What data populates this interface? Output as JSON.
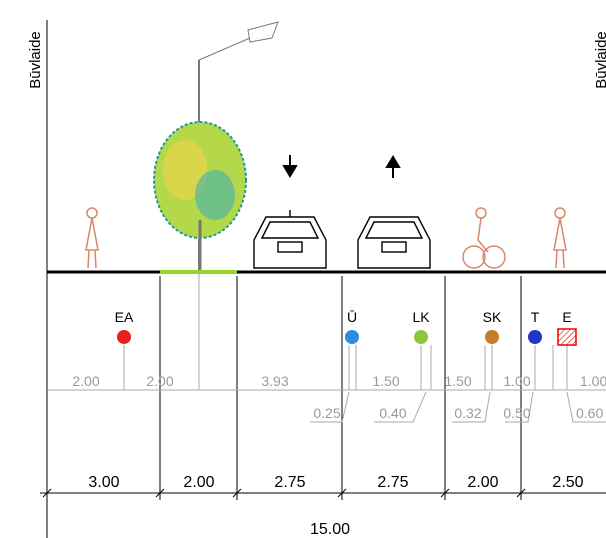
{
  "building_line": {
    "left": "Būvlaide",
    "right": "Būvlaide"
  },
  "utilities": [
    "EA",
    "Ū",
    "LK",
    "SK",
    "T",
    "E"
  ],
  "offsets_upper": [
    "2.00",
    "2.00",
    "3.93",
    "1.50",
    "1.50",
    "1.00",
    "1.00"
  ],
  "offsets_lower": [
    "0.25",
    "0.40",
    "0.32",
    "0.50",
    "0.60"
  ],
  "widths": [
    "3.00",
    "2.00",
    "2.75",
    "2.75",
    "2.00",
    "2.50"
  ],
  "total": "15.00"
}
